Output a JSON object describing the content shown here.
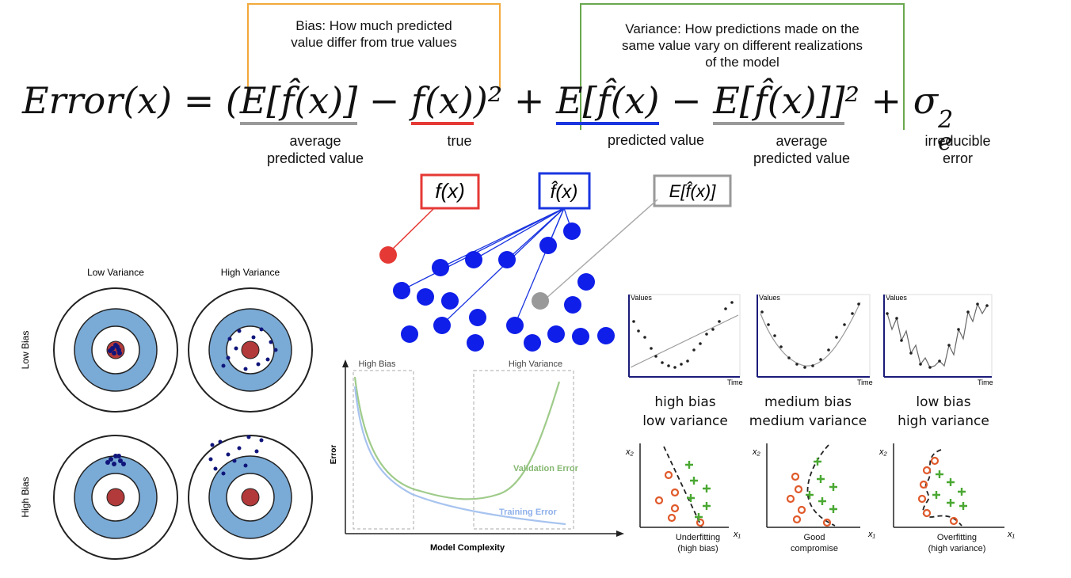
{
  "bias_note": [
    "Bias: How much predicted",
    "value differ from true values"
  ],
  "variance_note": [
    "Variance: How predictions made on the",
    "same value vary on different realizations",
    "of the model"
  ],
  "equation": {
    "lhs": "Error(x) = (",
    "term1": "E[f̂(x)]",
    "minus1": " − ",
    "term2": "f(x)",
    "close1": ")² + ",
    "term3a": "E[f̂(x)",
    "minus2": " − ",
    "term3b": "E[f̂(x)]]",
    "close2": "² + σ",
    "sub": "e",
    "sup": "2"
  },
  "term_labels": {
    "avg1": [
      "average",
      "predicted value"
    ],
    "true": "true",
    "pred": "predicted value",
    "avg2": [
      "average",
      "predicted value"
    ],
    "irreducible": [
      "irreducible",
      "error"
    ]
  },
  "symbol_boxes": {
    "true": "f(x)",
    "pred": "f̂(x)",
    "avg": "E[f̂(x)]"
  },
  "colors": {
    "bias_box": "#f2a93b",
    "variance_box": "#6aa84f",
    "true": "#e53935",
    "pred": "#1a35e0",
    "avg": "#999999",
    "dots": "#0f1ee8",
    "target_blue": "#7aaad6",
    "bullseye": "#b23a3a"
  },
  "targets": {
    "col_labels": [
      "Low Variance",
      "High Variance"
    ],
    "row_labels": [
      "Low Bias",
      "High Bias"
    ]
  },
  "tradeoff_chart": {
    "region_labels": [
      "High Bias",
      "High Variance"
    ],
    "xlabel": "Model Complexity",
    "ylabel": "Error",
    "series": [
      "Validation Error",
      "Training Error"
    ]
  },
  "fits": [
    {
      "caption": [
        "high bias",
        "low variance"
      ],
      "axis_y": "Values",
      "axis_x": "Time"
    },
    {
      "caption": [
        "medium bias",
        "medium variance"
      ],
      "axis_y": "Values",
      "axis_x": "Time"
    },
    {
      "caption": [
        "low bias",
        "high variance"
      ],
      "axis_y": "Values",
      "axis_x": "Time"
    }
  ],
  "classifiers": [
    {
      "caption": [
        "Underfitting",
        "(high bias)"
      ]
    },
    {
      "caption": [
        "Good",
        "compromise"
      ]
    },
    {
      "caption": [
        "Overfitting",
        "(high variance)"
      ]
    }
  ],
  "class_axes": {
    "x": "x₁",
    "y": "x₂"
  }
}
